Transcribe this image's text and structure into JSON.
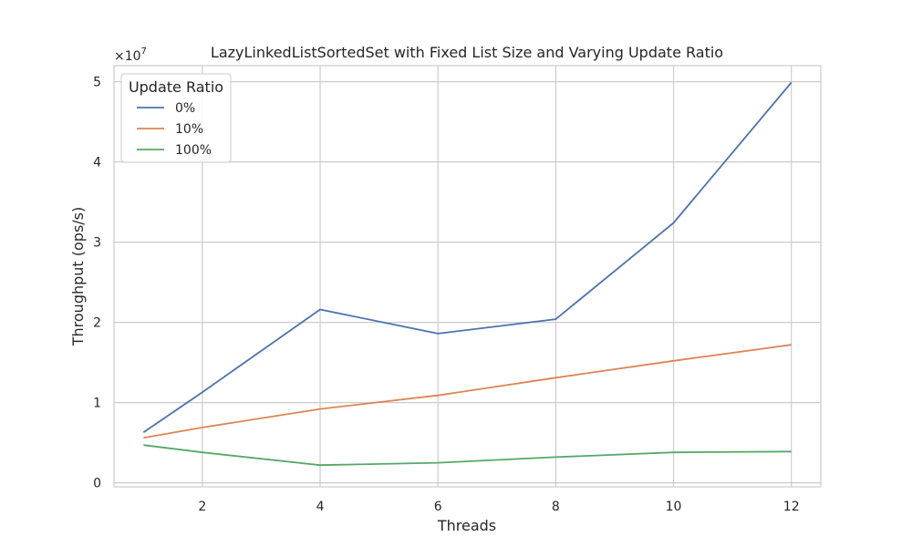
{
  "chart_data": {
    "type": "line",
    "title": "LazyLinkedListSortedSet with Fixed List Size and Varying Update Ratio",
    "xlabel": "Threads",
    "ylabel": "Throughput (ops/s)",
    "y_scale_label": "×10",
    "y_scale_exponent": "7",
    "x": [
      1,
      2,
      4,
      6,
      8,
      10,
      12
    ],
    "xlim": [
      0.5,
      12.5
    ],
    "ylim": [
      -0.05,
      5.2
    ],
    "y_multiplier": 10000000,
    "xticks": [
      2,
      4,
      6,
      8,
      10,
      12
    ],
    "yticks": [
      0,
      1,
      2,
      3,
      4,
      5
    ],
    "grid": true,
    "legend_title": "Update Ratio",
    "legend_position": "top-left",
    "series": [
      {
        "name": "0%",
        "color": "#4c72b0",
        "values": [
          0.63,
          1.13,
          2.16,
          1.86,
          2.04,
          3.24,
          4.99
        ]
      },
      {
        "name": "10%",
        "color": "#dd8452",
        "values": [
          0.56,
          0.69,
          0.92,
          1.09,
          1.31,
          1.52,
          1.72
        ]
      },
      {
        "name": "100%",
        "color": "#55a868",
        "values": [
          0.47,
          0.38,
          0.22,
          0.25,
          0.32,
          0.38,
          0.39
        ]
      }
    ]
  }
}
